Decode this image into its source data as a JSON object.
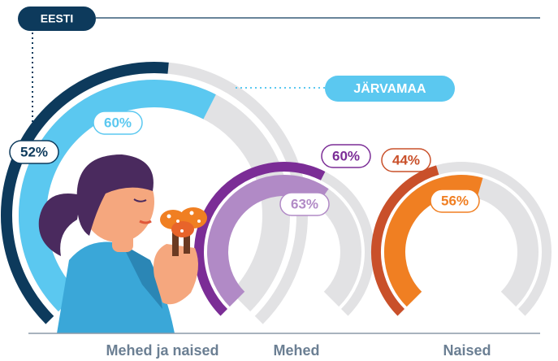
{
  "chart_data": {
    "type": "donut",
    "categories": [
      "Mehed ja naised",
      "Mehed",
      "Naised"
    ],
    "series": [
      {
        "name": "EESTI",
        "color": "#0d3a5c",
        "colors": [
          "#0d3a5c",
          "#7b2d96",
          "#c9502a"
        ],
        "values": [
          52,
          60,
          44
        ],
        "value_labels": [
          "52%",
          "60%",
          "44%"
        ]
      },
      {
        "name": "JÄRVAMAA",
        "color": "#5bc8f0",
        "colors": [
          "#5bc8f0",
          "#b18ac6",
          "#f07f22"
        ],
        "values": [
          60,
          63,
          56
        ],
        "value_labels": [
          "60%",
          "63%",
          "56%"
        ]
      }
    ],
    "ylim": [
      0,
      100
    ],
    "track_color": "#e2e2e4"
  }
}
